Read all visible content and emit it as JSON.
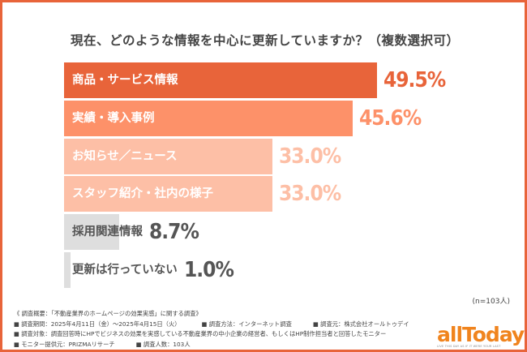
{
  "chart_data": {
    "type": "bar",
    "orientation": "horizontal",
    "title": "現在、どのような情報を中心に更新していますか？（複数選択可）",
    "categories": [
      "商品・サービス情報",
      "実績・導入事例",
      "お知らせ／ニュース",
      "スタッフ紹介・社内の様子",
      "採用関連情報",
      "更新は行っていない"
    ],
    "values": [
      49.5,
      45.6,
      33.0,
      33.0,
      8.7,
      1.0
    ],
    "value_labels": [
      "49.5%",
      "45.6%",
      "33.0%",
      "33.0%",
      "8.7%",
      "1.0%"
    ],
    "bar_colors": [
      "#e8643a",
      "#fd9169",
      "#fdbfa6",
      "#fdbfa6",
      "#dedede",
      "#dedede"
    ],
    "label_colors": [
      "#ffffff",
      "#ffffff",
      "#ffffff",
      "#ffffff",
      "#555555",
      "#555555"
    ],
    "value_colors": [
      "#e8643a",
      "#fd9169",
      "#fdbfa6",
      "#fdbfa6",
      "#555555",
      "#555555"
    ],
    "xlim": [
      0,
      50
    ],
    "grid": false,
    "sample_note": "(n=103人)"
  },
  "notes": {
    "overview": "《 調査概要：「不動産業界のホームページの効果実感」に関する調査》",
    "period": "■ 調査期間：2025年4月11日（金）～2025年4月15日（火）",
    "method": "■ 調査方法：インターネット調査",
    "source": "■ 調査元：株式会社オールトゥデイ",
    "target": "■ 調査対象：調査回答時にHPでビジネスの効果を実感している不動産業界の中小企業の経営者、もしくはHP制作担当者と回答したモニター",
    "provider": "■ モニター提供元：PRIZMAリサーチ",
    "count": "■ 調査人数：103人"
  },
  "logo": {
    "text": "allToday",
    "tagline": "LIVE THIS DAY AS IF IT WERE YOUR LAST",
    "color": "#f0841e"
  },
  "frame_color": "#e8643a"
}
